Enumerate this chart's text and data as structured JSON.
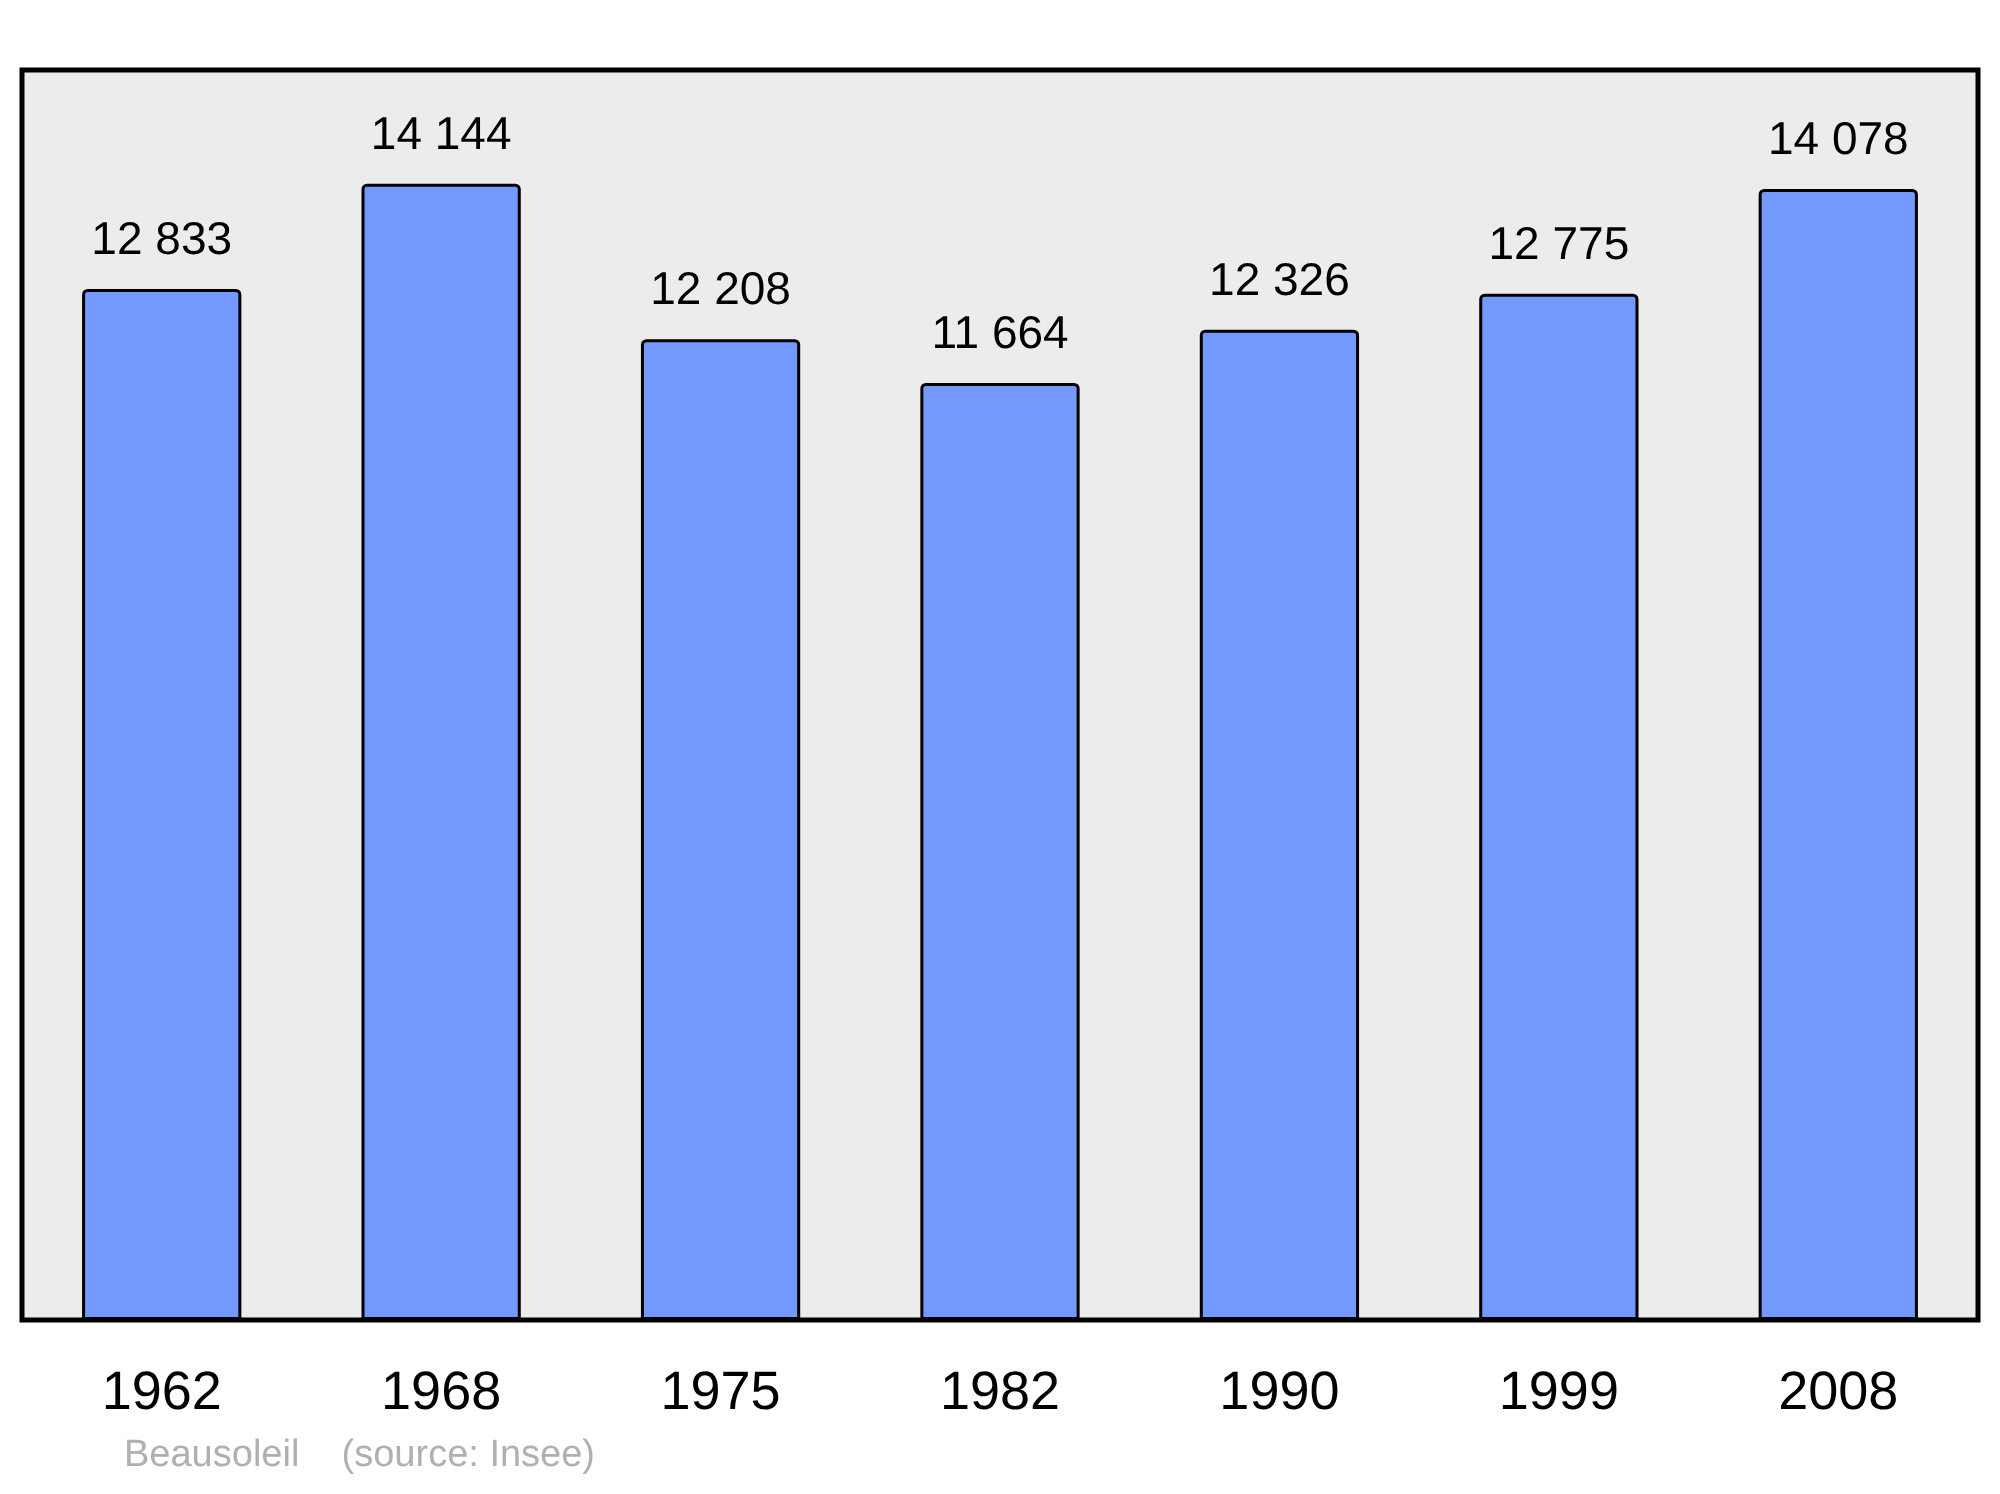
{
  "chart_data": {
    "type": "bar",
    "categories": [
      "1962",
      "1968",
      "1975",
      "1982",
      "1990",
      "1999",
      "2008"
    ],
    "values": [
      12833,
      14144,
      12208,
      11664,
      12326,
      12775,
      14078
    ],
    "value_labels": [
      "12 833",
      "14 144",
      "12 208",
      "11 664",
      "12 326",
      "12 775",
      "14 078"
    ],
    "color": "#7399ff",
    "annotations": [
      "Beausoleil    (source: Insee)"
    ]
  }
}
